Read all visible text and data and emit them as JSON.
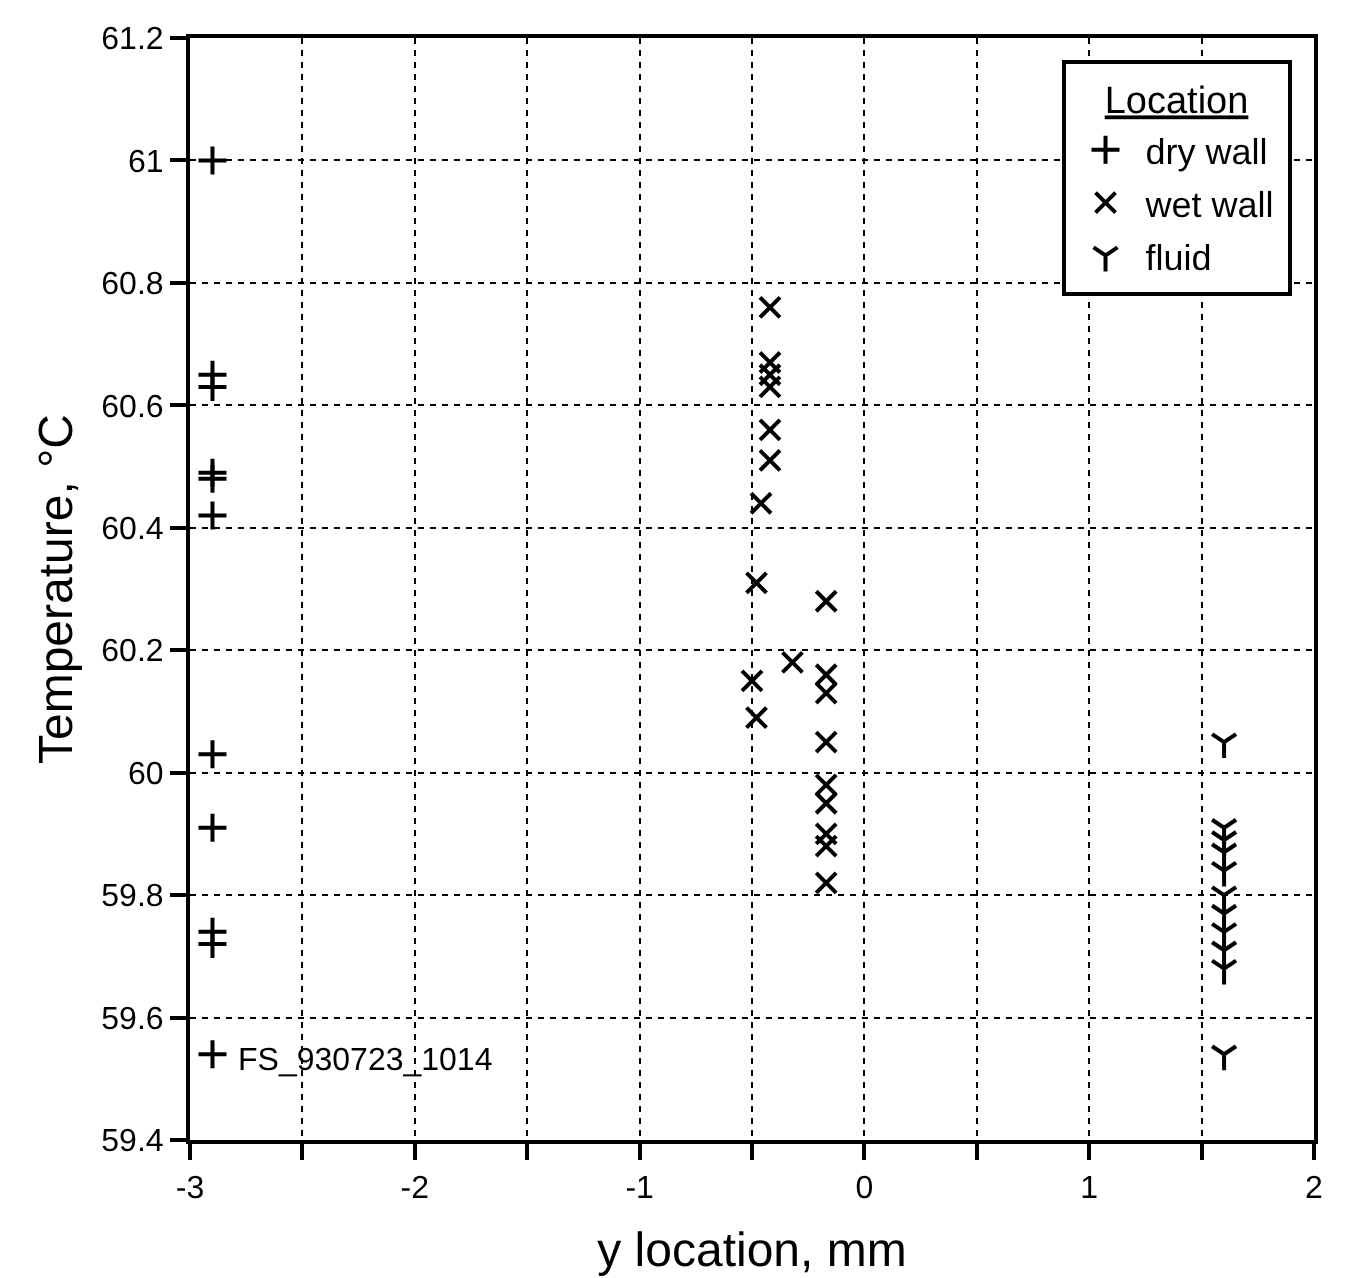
{
  "chart_data": {
    "type": "scatter",
    "xlabel": "y location, mm",
    "ylabel": "Temperature, °C",
    "legend_title": "Location",
    "legend": "top right",
    "grid": true,
    "line_style": "dotted",
    "xlim": [
      -3,
      2
    ],
    "ylim": [
      59.4,
      61.2
    ],
    "xticks": [
      -3,
      {
        "value": -2.5,
        "label": null
      },
      -2,
      {
        "value": -1.5,
        "label": null
      },
      -1,
      {
        "value": -0.5,
        "label": null
      },
      0,
      {
        "value": 0.5,
        "label": null
      },
      1,
      {
        "value": 1.5,
        "label": null
      },
      2
    ],
    "yticks": [
      59.4,
      59.6,
      59.8,
      60.0,
      60.2,
      60.4,
      60.6,
      60.8,
      61.0,
      61.2
    ],
    "annotations": [
      {
        "text": "FS_930723_1014",
        "x": -2.8,
        "y": 59.53
      }
    ],
    "series": [
      {
        "name": "dry wall",
        "color": "#000000",
        "marker": "cross",
        "x": [
          -2.9,
          -2.9,
          -2.9,
          -2.9,
          -2.9,
          -2.9,
          -2.9,
          -2.9,
          -2.9,
          -2.9,
          -2.9
        ],
        "values": [
          61.0,
          60.65,
          60.63,
          60.49,
          60.48,
          60.42,
          60.03,
          59.91,
          59.74,
          59.72,
          59.54
        ]
      },
      {
        "name": "wet wall",
        "color": "#000000",
        "marker": "x",
        "x": [
          -0.42,
          -0.42,
          -0.42,
          -0.42,
          -0.42,
          -0.42,
          -0.46,
          -0.48,
          -0.5,
          -0.48,
          -0.32,
          -0.17,
          -0.17,
          -0.17,
          -0.17,
          -0.17,
          -0.17,
          -0.17,
          -0.17,
          -0.17
        ],
        "values": [
          60.76,
          60.67,
          60.65,
          60.63,
          60.56,
          60.51,
          60.44,
          60.31,
          60.15,
          60.09,
          60.18,
          60.28,
          60.16,
          60.13,
          60.05,
          59.98,
          59.95,
          59.9,
          59.88,
          59.82
        ]
      },
      {
        "name": "fluid",
        "color": "#000000",
        "x": [
          1.6,
          1.6,
          1.6,
          1.6,
          1.6,
          1.6,
          1.6,
          1.6,
          1.6,
          1.6,
          1.6
        ],
        "values": [
          60.05,
          59.91,
          59.89,
          59.87,
          59.84,
          59.8,
          59.77,
          59.74,
          59.71,
          59.68,
          59.54
        ]
      }
    ]
  }
}
